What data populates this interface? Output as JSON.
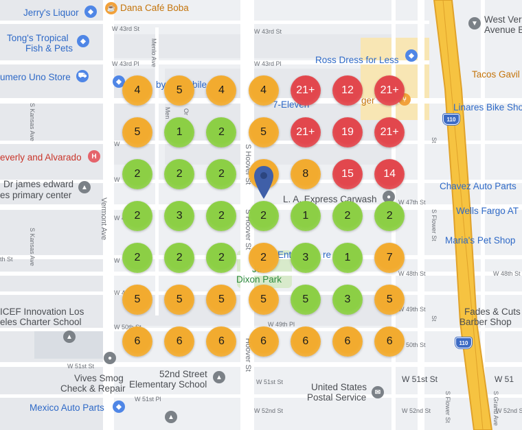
{
  "colors": {
    "green": "#8ccf45",
    "orange": "#f2ab2f",
    "red": "#e2474d",
    "pin": "#3f5fa8"
  },
  "grid": {
    "rows": [
      [
        "4",
        "5",
        "4",
        "4",
        "21+",
        "12",
        "21+"
      ],
      [
        "5",
        "1",
        "2",
        "5",
        "21+",
        "19",
        "21+"
      ],
      [
        "2",
        "2",
        "2",
        "9",
        "8",
        "15",
        "14"
      ],
      [
        "2",
        "3",
        "2",
        "2",
        "1",
        "2",
        "2"
      ],
      [
        "2",
        "2",
        "2",
        "2",
        "3",
        "1",
        "7"
      ],
      [
        "5",
        "5",
        "5",
        "5",
        "5",
        "3",
        "5"
      ],
      [
        "6",
        "6",
        "6",
        "6",
        "6",
        "6",
        "6"
      ]
    ],
    "levels": [
      [
        "orange",
        "orange",
        "orange",
        "orange",
        "red",
        "red",
        "red"
      ],
      [
        "orange",
        "green",
        "green",
        "orange",
        "red",
        "red",
        "red"
      ],
      [
        "green",
        "green",
        "green",
        "orange",
        "orange",
        "red",
        "red"
      ],
      [
        "green",
        "green",
        "green",
        "green",
        "green",
        "green",
        "green"
      ],
      [
        "green",
        "green",
        "green",
        "orange",
        "green",
        "green",
        "orange"
      ],
      [
        "orange",
        "orange",
        "orange",
        "orange",
        "green",
        "green",
        "orange"
      ],
      [
        "orange",
        "orange",
        "orange",
        "orange",
        "orange",
        "orange",
        "orange"
      ]
    ]
  },
  "places": {
    "jerrys_liquor": "Jerry's Liquor",
    "dana_cafe": "Dana Café Boba",
    "tongs_line1": "Tong's Tropical",
    "tongs_line2": "Fish & Pets",
    "numero_uno": "umero Uno Store",
    "ross": "Ross Dress for Less",
    "west_vernon_line1": "West Ver",
    "west_vernon_line2": "Avenue Be",
    "tacos_gavilan": "Tacos Gavil",
    "seven_eleven": "7-Eleven",
    "linares": "Linares Bike Sho",
    "beverly_alvarado": "everly and Alvarado",
    "drjames_line1": "Dr james edward",
    "drjames_line2": "es primary center",
    "la_express": "L. A. Express Carwash",
    "chavez": "Chavez Auto Parts",
    "wells_fargo": "Wells Fargo AT",
    "marias": "Maria's Pet Shop",
    "dixon_line1": "Ju",
    "dixon_line2": "Dixon Park",
    "ent_re": "Ent",
    "ent_re2": "re Re",
    "icef_line1": "ICEF Innovation Los",
    "icef_line2": "eles Charter School",
    "fades_line1": "Fades & Cuts",
    "fades_line2": "Barber Shop",
    "vives_line1": "Vives Smog",
    "vives_line2": "Check & Repair",
    "fiftysecond_line1": "52nd Street",
    "fiftysecond_line2": "Elementary School",
    "usps_line1": "United States",
    "usps_line2": "Postal Service",
    "mexico_auto": "Mexico Auto Parts",
    "by_mobile": "by",
    "bile": "bile",
    "burger": "ger"
  },
  "streets": {
    "w43rd_1": "W 43rd St",
    "w43rd_2": "W 43rd St",
    "w43rd_pl1": "W 43rd Pl",
    "w43rd_pl2": "W 43rd Pl",
    "menlo": "Menlo Ave",
    "s_kansas_1": "S Kansas Ave",
    "s_kansas_2": "S Kansas Ave",
    "vermont": "Vermont Ave",
    "s_hoover_1": "S Hoover St",
    "s_hoover_2": "S Hoover St",
    "hoover_st": "Hoover St",
    "w47th_1": "W 47th St",
    "w47th_2": "W 47th St",
    "w48th_1": "W 48th St",
    "w48th_2": "W 48th St",
    "th_st": "th St",
    "w49th_1": "W 49th Pl",
    "w49th_2": "W 49th St",
    "w50th_1": "W 50th St",
    "w50th_2": "W 50th St",
    "w51st_1": "W 51st St",
    "w51st_2": "W 51st St",
    "w51st_3": "W 51st St",
    "w51st_4": "W 51",
    "w51st_pl": "W 51st Pl",
    "w52nd_1": "W 52nd St",
    "w52nd_2": "W 52nd St",
    "w52nd_3": "W 52nd St",
    "s_flower_1": "S Flower St",
    "s_flower_2": "S Flower St",
    "s_grand": "S Grand Ave",
    "st_1": "St",
    "st_2": "St",
    "w_left_1": "W",
    "w_left_2": "W",
    "w_left_3": "W",
    "w_left_4": "W 4",
    "orc": "Or",
    "men": "Men",
    "i110_a": "110",
    "i110_b": "110"
  }
}
